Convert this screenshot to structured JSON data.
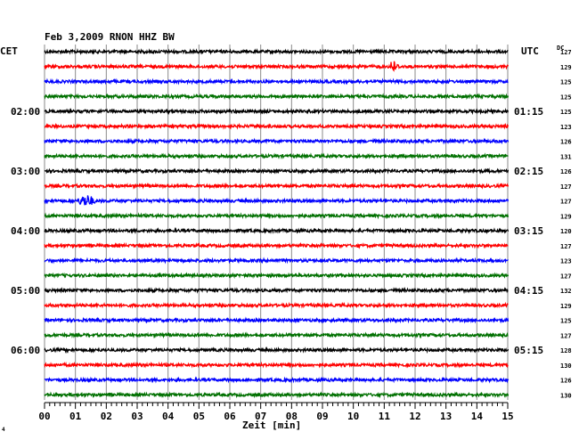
{
  "chart_data": {
    "type": "line",
    "title": "Feb 3,2009   RNON HHZ BW",
    "left_axis_label": "CET",
    "right_axis_label": "UTC",
    "dc_label": "DC",
    "xlabel": "Zeit [min]",
    "xlim": [
      0,
      15
    ],
    "x_ticks": [
      "00",
      "01",
      "02",
      "03",
      "04",
      "05",
      "06",
      "07",
      "08",
      "09",
      "10",
      "11",
      "12",
      "13",
      "14",
      "15"
    ],
    "trace_colors": [
      "#000000",
      "#ff0000",
      "#0000ff",
      "#007000"
    ],
    "left_time_labels": [
      {
        "trace": 4,
        "label": "02:00"
      },
      {
        "trace": 8,
        "label": "03:00"
      },
      {
        "trace": 12,
        "label": "04:00"
      },
      {
        "trace": 16,
        "label": "05:00"
      },
      {
        "trace": 20,
        "label": "06:00"
      }
    ],
    "right_time_labels": [
      {
        "trace": 4,
        "label": "01:15"
      },
      {
        "trace": 8,
        "label": "02:15"
      },
      {
        "trace": 12,
        "label": "03:15"
      },
      {
        "trace": 16,
        "label": "04:15"
      },
      {
        "trace": 20,
        "label": "05:15"
      }
    ],
    "dc_values": [
      127,
      129,
      125,
      125,
      125,
      123,
      126,
      131,
      126,
      127,
      127,
      129,
      120,
      127,
      123,
      127,
      132,
      129,
      125,
      127,
      128,
      130,
      126,
      130
    ],
    "events": [
      {
        "trace": 1,
        "start_min": 11.2,
        "end_min": 12.0,
        "amplitude": "large"
      },
      {
        "trace": 10,
        "start_min": 1.0,
        "end_min": 1.7,
        "amplitude": "medium"
      }
    ],
    "footnote": "4"
  }
}
